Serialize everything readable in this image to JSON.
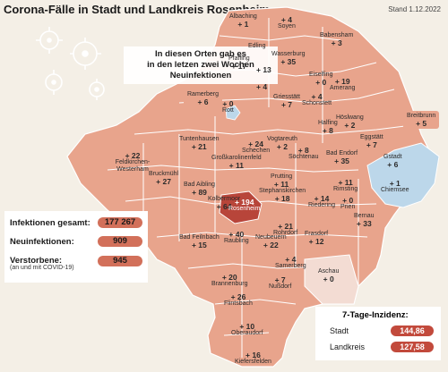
{
  "header": {
    "title": "Corona-Fälle in Stadt und Landkreis Rosenheim",
    "stand": "Stand 1.12.2022"
  },
  "note": {
    "line1": "In diesen Orten gab es",
    "line2": "in den letzen zwei Wochen",
    "line3": "Neuinfektionen"
  },
  "colors": {
    "background": "#f4efe6",
    "region_light": "#e8a48c",
    "region_mid": "#d98a74",
    "city": "#b8453a",
    "water": "#bcd7ea",
    "zero": "#f3dcd3"
  },
  "places": [
    {
      "name": "Albaching",
      "value": "+ 1"
    },
    {
      "name": "Soyen",
      "value": "+ 4"
    },
    {
      "name": "Edling",
      "value": ""
    },
    {
      "name": "Babensham",
      "value": "+ 3"
    },
    {
      "name": "Pfaffing",
      "value": "+ 17"
    },
    {
      "name": "",
      "value": "+ 13"
    },
    {
      "name": "Wasserburg",
      "value": "+ 35"
    },
    {
      "name": "Eiselfing",
      "value": "+ 0"
    },
    {
      "name": "",
      "value": "+ 4"
    },
    {
      "name": "Amerang",
      "value": "+ 19"
    },
    {
      "name": "Griesstätt",
      "value": "+ 7"
    },
    {
      "name": "Schonstett",
      "value": "+ 4"
    },
    {
      "name": "Halfing",
      "value": "+ 8"
    },
    {
      "name": "Höslwang",
      "value": "+ 2"
    },
    {
      "name": "Bad Endorf",
      "value": "+ 35"
    },
    {
      "name": "Eggstätt",
      "value": "+ 7"
    },
    {
      "name": "Gstadt",
      "value": "+ 6"
    },
    {
      "name": "Chiemsee",
      "value": "+ 1"
    },
    {
      "name": "Rott",
      "value": "+ 0"
    },
    {
      "name": "Tuntenhausen",
      "value": "+ 21"
    },
    {
      "name": "Vogtareuth",
      "value": "+ 2"
    },
    {
      "name": "Söchtenau",
      "value": "+ 8"
    },
    {
      "name": "Schechen",
      "value": "+ 24"
    },
    {
      "name": "Feldkirchen-Westerham",
      "value": "+ 22"
    },
    {
      "name": "Großkarolinenfeld",
      "value": "+ 11"
    },
    {
      "name": "Bruckmühl",
      "value": "+ 27"
    },
    {
      "name": "Prutting",
      "value": "+ 11"
    },
    {
      "name": "Bad Aibling",
      "value": "+ 89"
    },
    {
      "name": "Kolbermoor",
      "value": "+ 64"
    },
    {
      "name": "Rosenheim",
      "value": "+ 194"
    },
    {
      "name": "Stephanskirchen",
      "value": "+ 18"
    },
    {
      "name": "Riedering",
      "value": "+ 14"
    },
    {
      "name": "Rimsting",
      "value": "+ 11"
    },
    {
      "name": "Prien",
      "value": "+ 0"
    },
    {
      "name": "Bernau",
      "value": "+ 33"
    },
    {
      "name": "Rohrdorf",
      "value": "+ 21"
    },
    {
      "name": "Frasdorf",
      "value": "+ 12"
    },
    {
      "name": "Bad Feilnbach",
      "value": "+ 15"
    },
    {
      "name": "Raubling",
      "value": "+ 40"
    },
    {
      "name": "Neubeuern",
      "value": "+ 22"
    },
    {
      "name": "Samerberg",
      "value": "+ 4"
    },
    {
      "name": "Brannenburg",
      "value": "+ 20"
    },
    {
      "name": "Nußdorf",
      "value": "+ 7"
    },
    {
      "name": "Flintsbach",
      "value": "+ 26"
    },
    {
      "name": "Oberaudorf",
      "value": "+ 10"
    },
    {
      "name": "Kiefersfelden",
      "value": "+ 16"
    },
    {
      "name": "Aschau",
      "value": "+ 0"
    }
  ],
  "callouts": [
    {
      "name": "Ramerberg",
      "value": "+ 6"
    },
    {
      "name": "Breitbrunn",
      "value": "+ 5"
    }
  ],
  "stats": {
    "infections_label": "Infektionen gesamt:",
    "infections_value": "177 267",
    "new_label": "Neuinfektionen:",
    "new_value": "909",
    "deaths_label": "Verstorbene:",
    "deaths_sub": "(an und mit COVID-19)",
    "deaths_value": "945"
  },
  "incidence": {
    "title": "7-Tage-Inzidenz:",
    "stadt_label": "Stadt",
    "stadt_value": "144,86",
    "landkreis_label": "Landkreis",
    "landkreis_value": "127,58"
  }
}
